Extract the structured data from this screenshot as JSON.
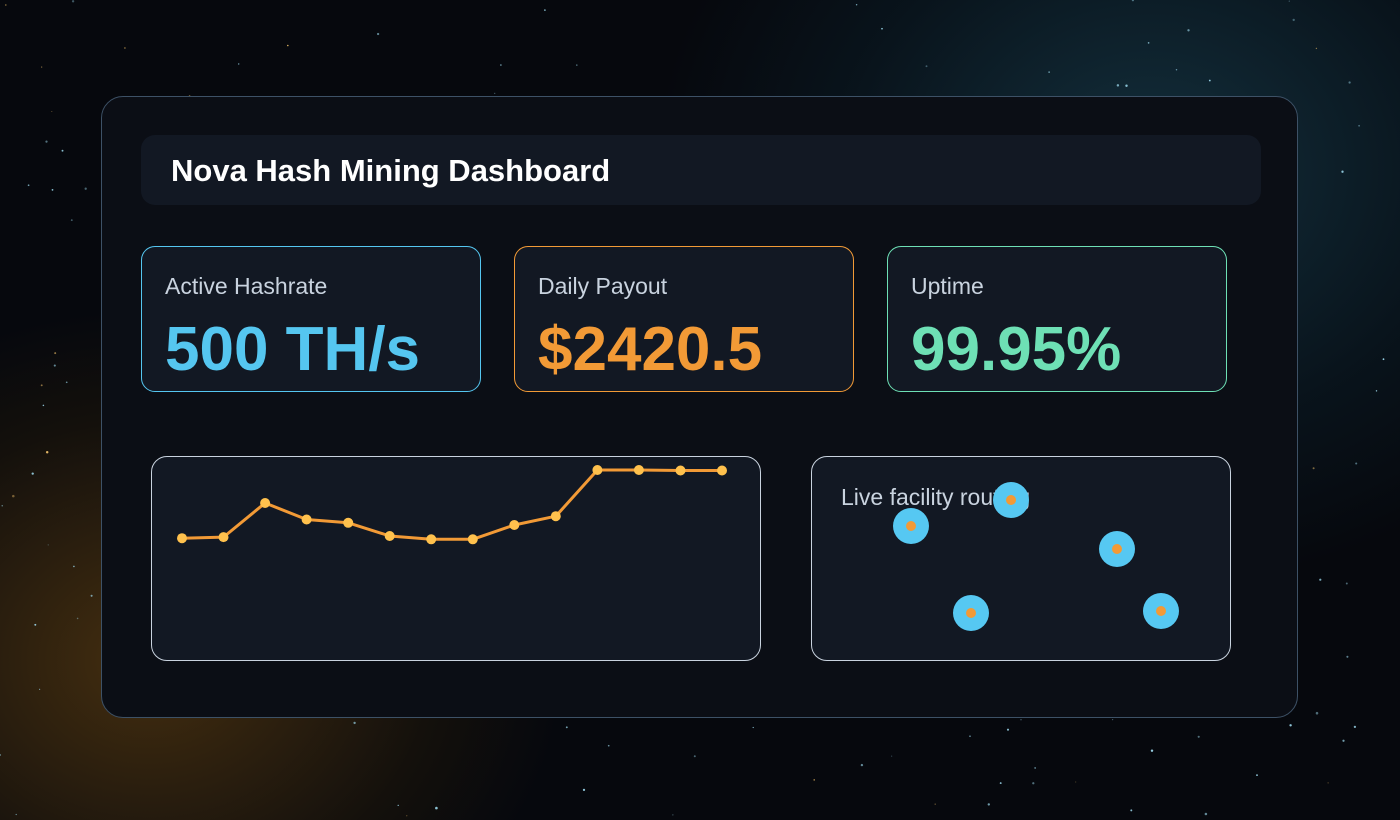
{
  "dashboard": {
    "title": "Nova Hash Mining Dashboard"
  },
  "cards": [
    {
      "label": "Active Hashrate",
      "value": "500 TH/s",
      "color": "#55c6f0"
    },
    {
      "label": "Daily Payout",
      "value": "$2420.5",
      "color": "#f29a36"
    },
    {
      "label": "Uptime",
      "value": "99.95%",
      "color": "#6ee0b5"
    }
  ],
  "chart_data": {
    "type": "line",
    "title": "",
    "xlabel": "",
    "ylabel": "",
    "x": [
      1,
      2,
      3,
      4,
      5,
      6,
      7,
      8,
      9,
      10,
      11,
      12,
      13,
      14
    ],
    "values": [
      38,
      39,
      70,
      55,
      52,
      40,
      37,
      37,
      50,
      58,
      100,
      100,
      99.5,
      99.5
    ],
    "ylim": [
      0,
      100
    ],
    "grid": false,
    "line_color": "#f29a36",
    "point_color": "#ffc14d"
  },
  "map": {
    "title": "Live facility routing",
    "nodes": [
      "facility-node",
      "facility-node",
      "facility-node",
      "facility-node",
      "facility-node"
    ],
    "node_color": "#56c8f2",
    "node_center_color": "#f29a36"
  }
}
